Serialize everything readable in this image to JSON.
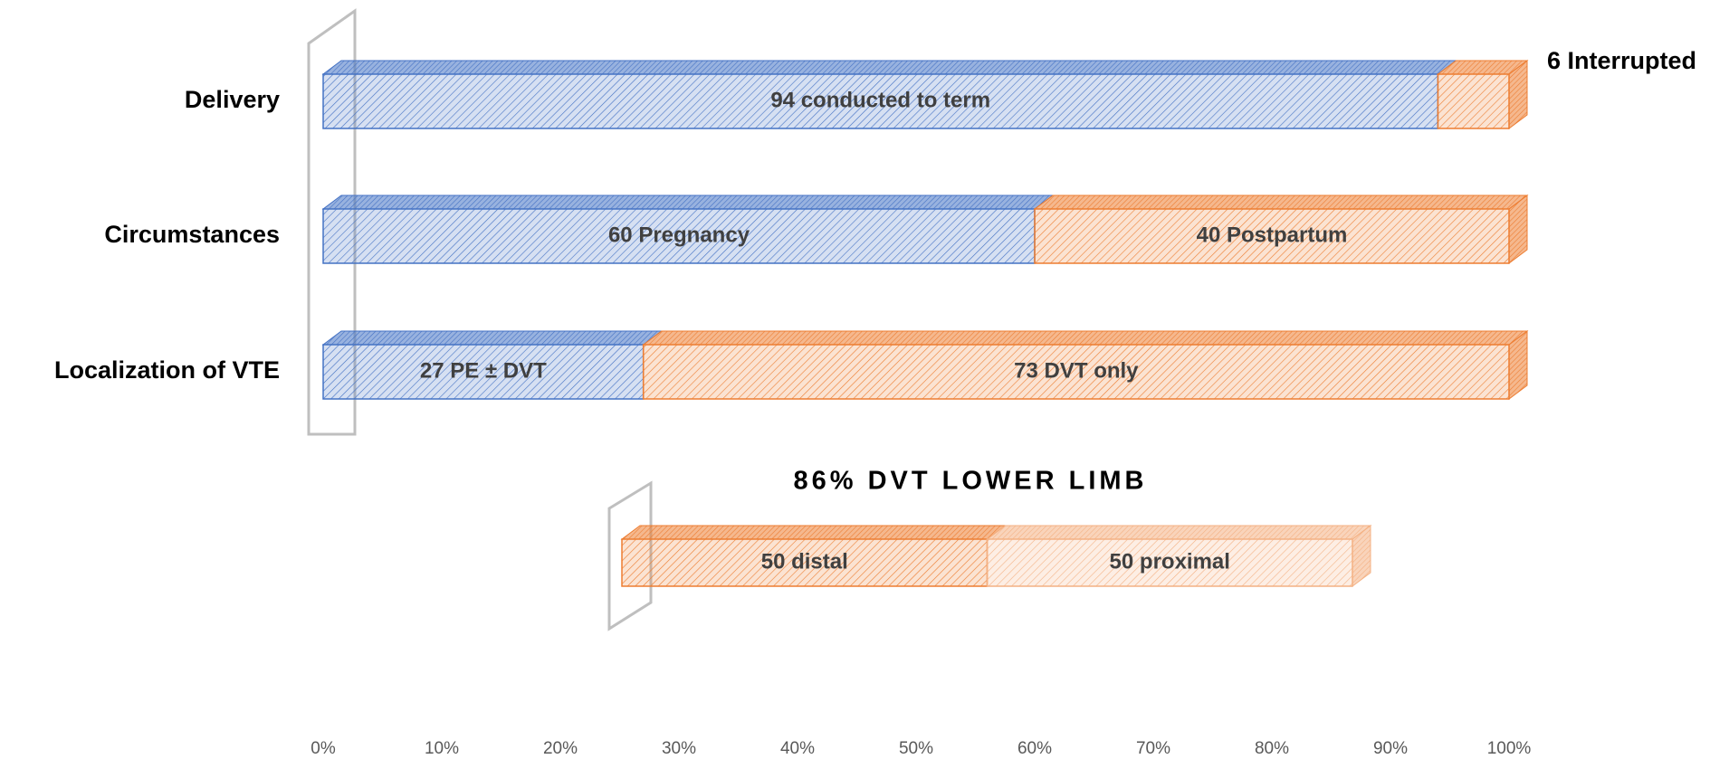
{
  "chart_data": [
    {
      "type": "stacked-bar-horizontal",
      "categories": [
        "Delivery",
        "Circumstances",
        "Localization of VTE"
      ],
      "series": [
        {
          "color": "#4472c4",
          "values": [
            94,
            60,
            27
          ],
          "value_labels": [
            "94 conducted to term",
            "60 Pregnancy",
            "27 PE ± DVT"
          ]
        },
        {
          "color": "#ed7d31",
          "values": [
            6,
            40,
            73
          ],
          "value_labels": [
            "6 Interrupted",
            "40 Postpartum",
            "73 DVT only"
          ]
        }
      ],
      "xlim": [
        0,
        100
      ],
      "xticks": [
        {
          "value": 0,
          "label": "0%"
        },
        {
          "value": 10,
          "label": "10%"
        },
        {
          "value": 20,
          "label": "20%"
        },
        {
          "value": 30,
          "label": "30%"
        },
        {
          "value": 40,
          "label": "40%"
        },
        {
          "value": 50,
          "label": "50%"
        },
        {
          "value": 60,
          "label": "60%"
        },
        {
          "value": 70,
          "label": "70%"
        },
        {
          "value": 80,
          "label": "80%"
        },
        {
          "value": 90,
          "label": "90%"
        },
        {
          "value": 100,
          "label": "100%"
        }
      ]
    },
    {
      "type": "stacked-bar-horizontal",
      "title": "86% DVT LOWER LIMB",
      "categories": [
        null
      ],
      "series": [
        {
          "color": "#ed7d31",
          "values": [
            50
          ],
          "value_labels": [
            "50 distal"
          ]
        },
        {
          "color": "#f4b183",
          "values": [
            50
          ],
          "value_labels": [
            "50 proximal"
          ]
        }
      ],
      "xlim": [
        0,
        100
      ]
    }
  ]
}
